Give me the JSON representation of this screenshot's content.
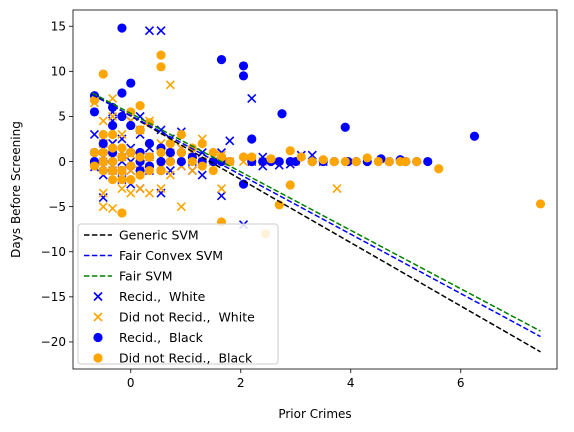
{
  "chart_data": {
    "type": "scatter",
    "xlabel": "Prior Crimes",
    "ylabel": "Days Before Screening",
    "xlim": [
      -1.05,
      7.75
    ],
    "ylim": [
      -23.0,
      16.8
    ],
    "xticks": [
      0,
      2,
      4,
      6
    ],
    "yticks": [
      -20,
      -15,
      -10,
      -5,
      0,
      5,
      10,
      15
    ],
    "grid": false,
    "legend_position": "lower-left",
    "lines": [
      {
        "name": "Generic SVM",
        "color": "#000000",
        "dash": true,
        "x": [
          -0.7,
          7.45
        ],
        "y": [
          7.5,
          -21.1
        ]
      },
      {
        "name": "Fair Convex SVM",
        "color": "#0000ff",
        "dash": true,
        "x": [
          -0.7,
          7.45
        ],
        "y": [
          7.4,
          -19.4
        ]
      },
      {
        "name": "Fair SVM",
        "color": "#008000",
        "dash": true,
        "x": [
          -0.7,
          7.45
        ],
        "y": [
          7.6,
          -18.8
        ]
      }
    ],
    "series": [
      {
        "name": "Recid.,  White",
        "marker": "x",
        "color": "#0000ff",
        "x": [
          -0.66,
          -0.66,
          -0.66,
          -0.5,
          -0.5,
          -0.5,
          -0.5,
          -0.5,
          -0.33,
          -0.33,
          -0.33,
          -0.33,
          -0.33,
          -0.33,
          -0.16,
          -0.16,
          -0.16,
          -0.16,
          -0.16,
          0.0,
          0.0,
          0.0,
          0.0,
          0.0,
          0.17,
          0.17,
          0.17,
          0.17,
          0.17,
          0.34,
          0.34,
          0.34,
          0.55,
          0.55,
          0.55,
          0.55,
          0.72,
          0.72,
          0.72,
          0.92,
          0.92,
          0.92,
          1.12,
          1.12,
          1.3,
          1.3,
          1.3,
          1.65,
          1.65,
          1.8,
          2.05,
          2.2,
          2.2,
          2.4,
          2.4,
          2.7,
          2.9,
          3.1,
          3.3,
          3.5
        ],
        "y": [
          3.0,
          0.5,
          -0.6,
          2.0,
          0.5,
          -0.5,
          -1.5,
          -4.0,
          5.5,
          4.5,
          2.0,
          0.5,
          -0.5,
          -1.0,
          2.5,
          1.0,
          0.0,
          -1.0,
          -2.0,
          4.5,
          1.5,
          0.0,
          -1.0,
          -2.5,
          5.0,
          3.0,
          0.5,
          -1.0,
          -3.0,
          14.5,
          1.5,
          -1.0,
          14.5,
          3.5,
          0.5,
          -3.5,
          2.5,
          0.5,
          -1.0,
          3.3,
          1.5,
          -0.5,
          0.0,
          -1.0,
          1.0,
          0.0,
          -1.5,
          -3.8,
          1.0,
          2.3,
          -7.0,
          7.0,
          0.0,
          -0.5,
          0.5,
          -0.4,
          -0.3,
          0.7,
          0.7,
          0.0
        ]
      },
      {
        "name": "Did not Recid.,  White",
        "marker": "x",
        "color": "#ffa500",
        "x": [
          -0.66,
          -0.66,
          -0.5,
          -0.5,
          -0.5,
          -0.5,
          -0.5,
          -0.33,
          -0.33,
          -0.33,
          -0.33,
          -0.33,
          -0.16,
          -0.16,
          -0.16,
          -0.16,
          0.0,
          0.0,
          0.0,
          0.0,
          0.17,
          0.17,
          0.17,
          0.17,
          0.34,
          0.34,
          0.34,
          0.55,
          0.55,
          0.55,
          0.72,
          0.72,
          0.72,
          0.92,
          0.92,
          0.92,
          1.12,
          1.12,
          1.3,
          1.3,
          1.5,
          1.65,
          1.65,
          1.8,
          2.05,
          2.2,
          2.4,
          2.6,
          3.0,
          3.75
        ],
        "y": [
          6.5,
          0.5,
          4.5,
          2.0,
          0.0,
          -3.5,
          -5.0,
          7.0,
          5.0,
          1.0,
          -1.0,
          -5.2,
          3.0,
          0.5,
          -1.0,
          -3.0,
          4.5,
          0.8,
          -1.0,
          -3.5,
          3.5,
          0.7,
          -1.0,
          -3.0,
          4.5,
          0.5,
          -3.5,
          2.0,
          -0.7,
          -3.0,
          8.5,
          1.0,
          -1.5,
          1.5,
          -0.5,
          -5.0,
          0.5,
          -1.0,
          2.5,
          0.0,
          0.0,
          -3.0,
          0.7,
          0.0,
          0.0,
          0.3,
          0.0,
          0.0,
          0.0,
          -3.0
        ]
      },
      {
        "name": "Recid.,  Black",
        "marker": "o",
        "color": "#0000ff",
        "x": [
          -0.66,
          -0.66,
          -0.66,
          -0.66,
          -0.5,
          -0.5,
          -0.5,
          -0.5,
          -0.33,
          -0.33,
          -0.33,
          -0.33,
          -0.33,
          -0.16,
          -0.16,
          -0.16,
          -0.16,
          -0.16,
          0.0,
          0.0,
          0.0,
          0.0,
          0.17,
          0.17,
          0.17,
          0.17,
          0.34,
          0.34,
          0.34,
          0.55,
          0.55,
          0.55,
          0.72,
          0.72,
          0.92,
          0.92,
          1.12,
          1.3,
          1.5,
          1.65,
          1.65,
          1.8,
          2.05,
          2.05,
          2.05,
          2.2,
          2.2,
          2.4,
          2.55,
          2.7,
          2.75,
          2.9,
          3.0,
          3.3,
          3.5,
          3.7,
          3.9,
          3.95,
          4.1,
          4.3,
          4.55,
          4.7,
          4.9,
          5.0,
          5.2,
          5.4,
          6.25
        ],
        "y": [
          7.3,
          5.5,
          1.0,
          0.0,
          2.0,
          1.0,
          0.0,
          -1.0,
          6.0,
          4.0,
          1.0,
          0.0,
          -1.0,
          14.8,
          7.6,
          5.0,
          0.5,
          -1.0,
          8.7,
          4.0,
          1.0,
          -0.5,
          3.5,
          1.0,
          0.0,
          -1.0,
          2.0,
          0.5,
          -0.5,
          1.5,
          0.0,
          -1.0,
          1.0,
          0.0,
          1.0,
          0.0,
          0.5,
          0.0,
          0.0,
          11.3,
          0.0,
          0.0,
          10.6,
          9.5,
          -2.5,
          0.0,
          2.5,
          0.0,
          0.0,
          0.0,
          5.3,
          0.0,
          0.0,
          0.0,
          0.0,
          0.0,
          3.8,
          0.0,
          0.0,
          0.0,
          0.3,
          0.0,
          0.2,
          0.0,
          0.0,
          0.0,
          2.8
        ]
      },
      {
        "name": "Did not Recid.,  Black",
        "marker": "o",
        "color": "#ffa500",
        "x": [
          -0.66,
          -0.66,
          -0.66,
          -0.5,
          -0.5,
          -0.5,
          -0.5,
          -0.5,
          -0.33,
          -0.33,
          -0.33,
          -0.33,
          -0.33,
          -0.16,
          -0.16,
          -0.16,
          -0.16,
          -0.16,
          0.0,
          0.0,
          0.0,
          0.0,
          0.17,
          0.17,
          0.17,
          0.17,
          0.34,
          0.34,
          0.34,
          0.55,
          0.55,
          0.55,
          0.55,
          0.72,
          0.72,
          0.92,
          0.92,
          1.12,
          1.12,
          1.3,
          1.3,
          1.5,
          1.5,
          1.65,
          1.65,
          1.8,
          2.05,
          2.2,
          2.45,
          2.55,
          2.7,
          2.9,
          2.9,
          3.1,
          3.3,
          3.5,
          3.7,
          3.9,
          4.1,
          4.3,
          4.5,
          4.7,
          4.9,
          5.0,
          5.2,
          5.6,
          7.45
        ],
        "y": [
          6.8,
          1.0,
          -0.5,
          9.7,
          3.0,
          1.0,
          0.0,
          -1.0,
          3.0,
          1.5,
          0.0,
          -1.0,
          -2.0,
          1.5,
          0.5,
          -1.0,
          -2.0,
          -5.7,
          5.5,
          1.0,
          -0.5,
          -2.0,
          6.2,
          3.5,
          0.5,
          -1.5,
          4.3,
          0.5,
          -1.0,
          11.8,
          10.5,
          1.0,
          -1.0,
          2.0,
          0.0,
          3.0,
          1.0,
          1.5,
          0.0,
          2.0,
          -0.5,
          1.0,
          -1.0,
          0.5,
          -6.7,
          0.0,
          0.5,
          0.5,
          -8.0,
          0.3,
          -4.8,
          1.2,
          -2.6,
          0.5,
          0.0,
          0.2,
          0.0,
          0.0,
          0.0,
          0.4,
          0.0,
          0.0,
          0.0,
          0.0,
          0.0,
          -0.8,
          -4.7
        ]
      }
    ]
  }
}
